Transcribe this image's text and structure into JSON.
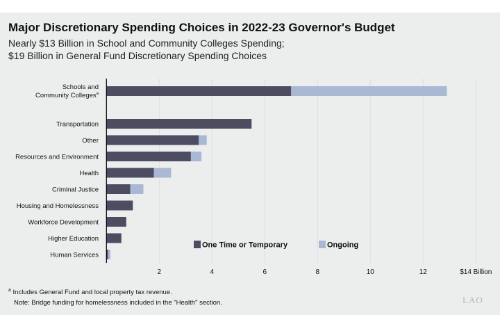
{
  "title": "Major Discretionary Spending Choices in 2022-23 Governor's Budget",
  "subtitle_lines": [
    "Nearly $13 Billion in School and Community Colleges Spending;",
    "$19 Billion in General Fund Discretionary Spending Choices"
  ],
  "footnotes": {
    "a_marker": "a",
    "a_text": "Includes General Fund and local property tax revenue.",
    "note": "Note: Bridge funding for homelessness included in the \"Health\" section."
  },
  "logo": "LAO",
  "colors": {
    "one_time": "#4d4d61",
    "ongoing": "#a9b9d4",
    "background": "#eceeed"
  },
  "chart_data": {
    "type": "bar",
    "orientation": "horizontal",
    "stacked": true,
    "categories": [
      "Schools and Community Colleges",
      "Transportation",
      "Other",
      "Resources and Environment",
      "Health",
      "Criminal Justice",
      "Housing and Homelessness",
      "Workforce Development",
      "Higher Education",
      "Human Services"
    ],
    "category_footnote": {
      "Schools and Community Colleges": "a"
    },
    "series": [
      {
        "name": "One Time or Temporary",
        "values": [
          7.0,
          5.5,
          3.5,
          3.2,
          1.8,
          0.9,
          1.0,
          0.75,
          0.56,
          0.06
        ]
      },
      {
        "name": "Ongoing",
        "values": [
          5.9,
          0,
          0.3,
          0.4,
          0.65,
          0.5,
          0,
          0,
          0.02,
          0.09
        ]
      }
    ],
    "xlim": [
      0,
      14
    ],
    "xticks": [
      "2",
      "4",
      "6",
      "8",
      "10",
      "12",
      "$14 Billion"
    ],
    "xtick_values": [
      2,
      4,
      6,
      8,
      10,
      12,
      14
    ],
    "grid": true,
    "legend": "bottom-center"
  }
}
